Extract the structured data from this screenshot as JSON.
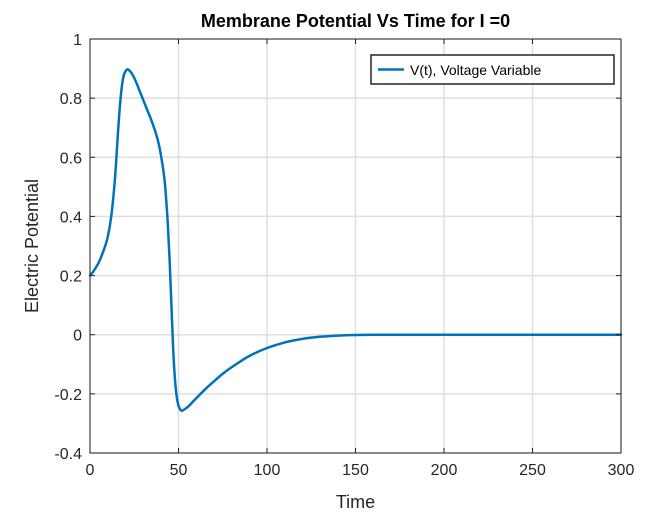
{
  "chart_data": {
    "type": "line",
    "title": "Membrane Potential Vs Time for I =0",
    "xlabel": "Time",
    "ylabel": "Electric Potential",
    "xlim": [
      0,
      300
    ],
    "ylim": [
      -0.4,
      1
    ],
    "xticks": [
      0,
      50,
      100,
      150,
      200,
      250,
      300
    ],
    "yticks": [
      -0.4,
      -0.2,
      0,
      0.2,
      0.4,
      0.6,
      0.8,
      1
    ],
    "xtick_labels": [
      "0",
      "50",
      "100",
      "150",
      "200",
      "250",
      "300"
    ],
    "ytick_labels": [
      "-0.4",
      "-0.2",
      "0",
      "0.2",
      "0.4",
      "0.6",
      "0.8",
      "1"
    ],
    "grid": true,
    "legend_position": "top-right",
    "series": [
      {
        "name": "V(t), Voltage Variable",
        "color": "#0072BD",
        "x": [
          0,
          2,
          5,
          8,
          10,
          12,
          14,
          16,
          17,
          18,
          19,
          20,
          21,
          22,
          24,
          26,
          28,
          30,
          32,
          35,
          38,
          40,
          42,
          43,
          44,
          45,
          46,
          47,
          48,
          49,
          50,
          51,
          52,
          54,
          56,
          60,
          65,
          70,
          75,
          80,
          90,
          100,
          110,
          120,
          130,
          140,
          150,
          160,
          170,
          180,
          200,
          250,
          300
        ],
        "y": [
          0.2,
          0.215,
          0.245,
          0.29,
          0.33,
          0.4,
          0.52,
          0.7,
          0.78,
          0.84,
          0.875,
          0.89,
          0.897,
          0.895,
          0.88,
          0.855,
          0.825,
          0.795,
          0.765,
          0.72,
          0.665,
          0.61,
          0.53,
          0.46,
          0.37,
          0.25,
          0.1,
          -0.05,
          -0.15,
          -0.21,
          -0.24,
          -0.253,
          -0.257,
          -0.25,
          -0.24,
          -0.215,
          -0.185,
          -0.158,
          -0.132,
          -0.11,
          -0.072,
          -0.045,
          -0.026,
          -0.014,
          -0.007,
          -0.003,
          -0.001,
          0,
          0,
          0,
          0,
          0,
          0
        ]
      }
    ]
  }
}
